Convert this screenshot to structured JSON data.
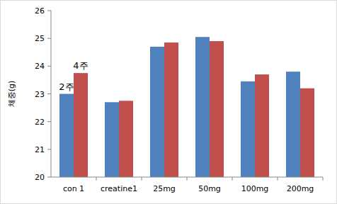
{
  "chart_data": {
    "type": "bar",
    "y_label": "체중(g)",
    "categories": [
      "con 1",
      "creatine1",
      "25mg",
      "50mg",
      "100mg",
      "200mg"
    ],
    "series": [
      {
        "name": "2주",
        "color": "#4f81bd",
        "values": [
          23.0,
          22.7,
          24.7,
          25.05,
          23.45,
          23.8
        ]
      },
      {
        "name": "4주",
        "color": "#c0504d",
        "values": [
          23.75,
          22.75,
          24.85,
          24.9,
          23.7,
          23.2
        ]
      }
    ],
    "ylim": [
      20,
      26
    ],
    "yticks": [
      20,
      21,
      22,
      23,
      24,
      25,
      26
    ],
    "grid": false
  }
}
